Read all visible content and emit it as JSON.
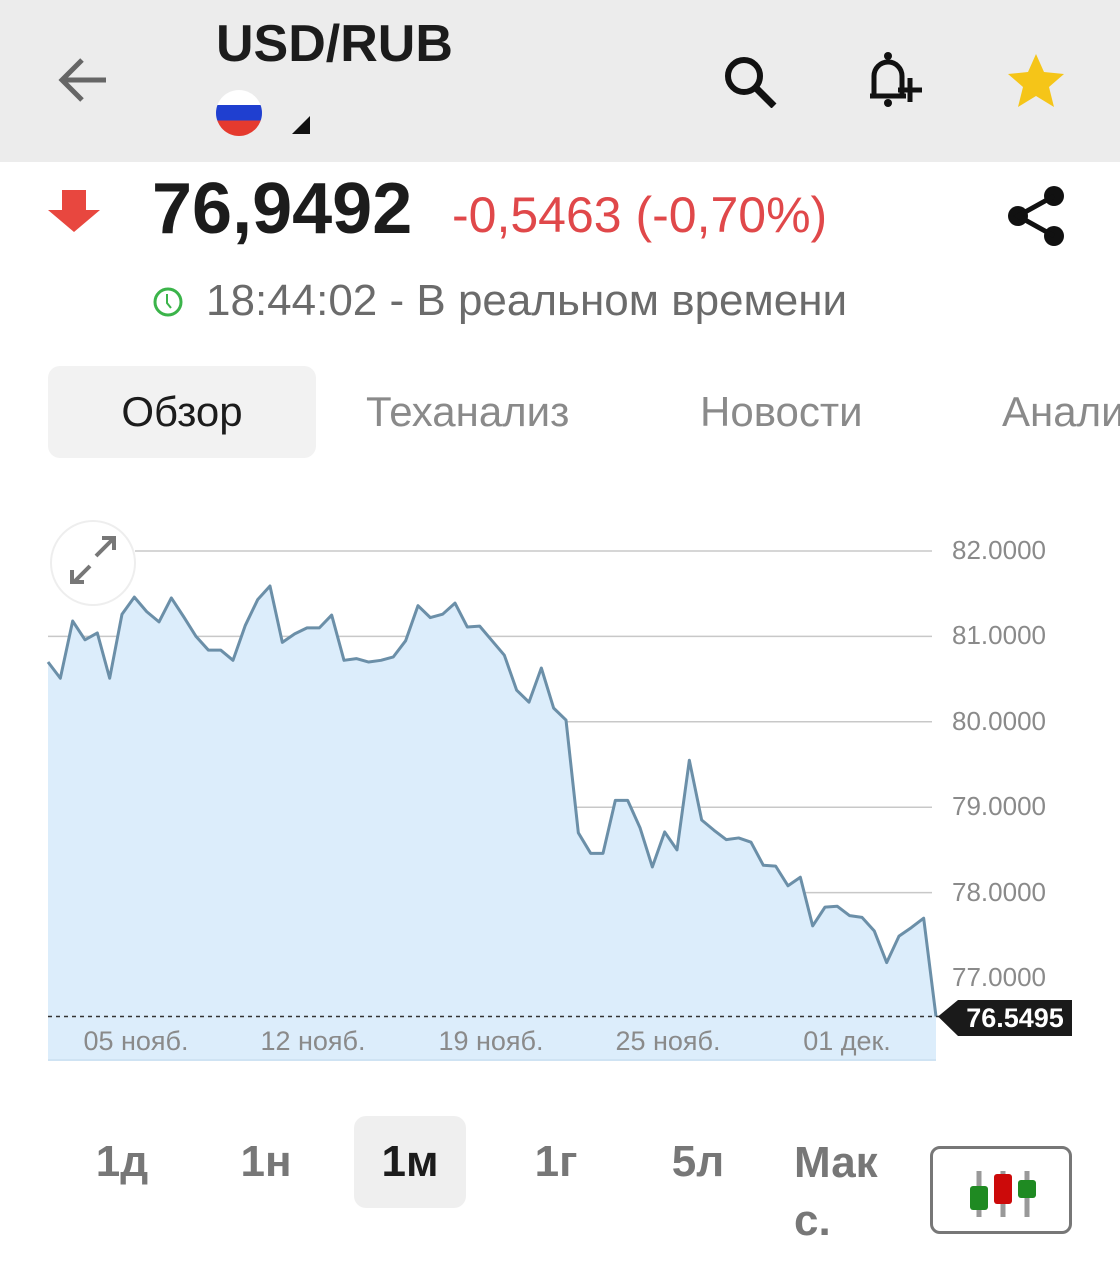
{
  "header": {
    "title": "USD/RUB",
    "back_icon": "arrow-left-icon",
    "search_icon": "search-icon",
    "alert_icon": "bell-plus-icon",
    "favorite_icon": "star-icon",
    "flag": "russia-flag"
  },
  "quote": {
    "price": "76,9492",
    "change": "-0,5463 (-0,70%)",
    "direction": "down",
    "time_status": "18:44:02 - В реальном времени",
    "colors": {
      "down": "#e0484a",
      "realtime": "#3bb44a",
      "favorite": "#f5c518"
    }
  },
  "tabs": [
    {
      "label": "Обзор",
      "active": true
    },
    {
      "label": "Теханализ"
    },
    {
      "label": "Новости"
    },
    {
      "label": "Анализ"
    }
  ],
  "periods": [
    {
      "label": "1д"
    },
    {
      "label": "1н"
    },
    {
      "label": "1м",
      "active": true
    },
    {
      "label": "1г"
    },
    {
      "label": "5л"
    },
    {
      "label": "Макс."
    }
  ],
  "chart_data": {
    "type": "area",
    "ylim": [
      76.55,
      82.0
    ],
    "y_ticks": [
      "82.0000",
      "81.0000",
      "80.0000",
      "79.0000",
      "78.0000",
      "77.0000"
    ],
    "x_tick_labels": [
      "05 нояб.",
      "12 нояб.",
      "19 нояб.",
      "25 нояб.",
      "01 дек."
    ],
    "last_value_label": "76.5495",
    "line_color": "#6b8fa8",
    "fill_color": "#dcedfb",
    "grid": true,
    "values": [
      80.7,
      80.51,
      81.18,
      80.96,
      81.04,
      80.51,
      81.26,
      81.46,
      81.29,
      81.17,
      81.45,
      81.23,
      81.0,
      80.84,
      80.84,
      80.72,
      81.13,
      81.43,
      81.59,
      80.93,
      81.03,
      81.1,
      81.1,
      81.25,
      80.72,
      80.74,
      80.7,
      80.72,
      80.76,
      80.95,
      81.36,
      81.22,
      81.26,
      81.39,
      81.11,
      81.12,
      80.95,
      80.78,
      80.37,
      80.23,
      80.63,
      80.16,
      80.02,
      78.7,
      78.46,
      78.46,
      79.08,
      79.08,
      78.76,
      78.3,
      78.71,
      78.5,
      79.55,
      78.85,
      78.73,
      78.62,
      78.64,
      78.59,
      78.32,
      78.31,
      78.08,
      78.18,
      77.61,
      77.83,
      77.84,
      77.73,
      77.71,
      77.55,
      77.18,
      77.49,
      77.59,
      77.7,
      76.5495
    ]
  }
}
